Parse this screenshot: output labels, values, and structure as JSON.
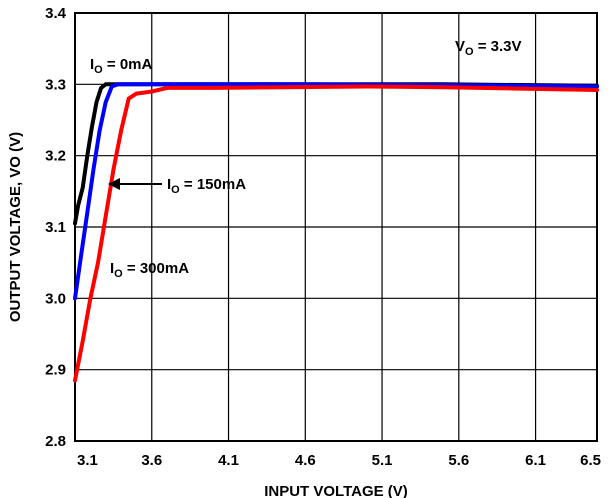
{
  "chart_data": {
    "type": "line",
    "title": "",
    "xlabel": "INPUT VOLTAGE (V)",
    "ylabel": "OUTPUT VOLTAGE, VO (V)",
    "xlim": [
      3.1,
      6.5
    ],
    "ylim": [
      2.8,
      3.4
    ],
    "x_ticks": [
      "3.1",
      "3.6",
      "4.1",
      "4.6",
      "5.1",
      "5.6",
      "6.1",
      "6.5"
    ],
    "y_ticks": [
      "2.8",
      "2.9",
      "3.0",
      "3.1",
      "3.2",
      "3.3",
      "3.4"
    ],
    "grid": true,
    "series": [
      {
        "name": "IO = 0mA",
        "color": "#000000",
        "points": [
          [
            3.1,
            3.105
          ],
          [
            3.12,
            3.13
          ],
          [
            3.15,
            3.155
          ],
          [
            3.18,
            3.2
          ],
          [
            3.21,
            3.24
          ],
          [
            3.24,
            3.275
          ],
          [
            3.27,
            3.295
          ],
          [
            3.3,
            3.3
          ],
          [
            3.5,
            3.3
          ],
          [
            4.5,
            3.3
          ],
          [
            5.5,
            3.3
          ],
          [
            6.5,
            3.298
          ]
        ]
      },
      {
        "name": "IO = 150mA",
        "color": "#0000ff",
        "points": [
          [
            3.1,
            3.0
          ],
          [
            3.14,
            3.06
          ],
          [
            3.18,
            3.12
          ],
          [
            3.22,
            3.18
          ],
          [
            3.26,
            3.235
          ],
          [
            3.3,
            3.275
          ],
          [
            3.34,
            3.297
          ],
          [
            3.38,
            3.3
          ],
          [
            3.6,
            3.3
          ],
          [
            4.5,
            3.3
          ],
          [
            5.5,
            3.299
          ],
          [
            6.5,
            3.297
          ]
        ]
      },
      {
        "name": "IO = 300mA",
        "color": "#ff0000",
        "points": [
          [
            3.1,
            2.885
          ],
          [
            3.15,
            2.94
          ],
          [
            3.2,
            3.0
          ],
          [
            3.25,
            3.05
          ],
          [
            3.3,
            3.115
          ],
          [
            3.35,
            3.18
          ],
          [
            3.4,
            3.235
          ],
          [
            3.45,
            3.28
          ],
          [
            3.5,
            3.287
          ],
          [
            3.6,
            3.29
          ],
          [
            3.7,
            3.295
          ],
          [
            4.0,
            3.295
          ],
          [
            5.0,
            3.297
          ],
          [
            5.5,
            3.296
          ],
          [
            6.0,
            3.294
          ],
          [
            6.5,
            3.292
          ]
        ]
      }
    ],
    "annotations": [
      {
        "main": "V",
        "sub": "O",
        "rest": " = 3.3V"
      },
      {
        "main": "I",
        "sub": "O",
        "rest": " = 0mA"
      },
      {
        "main": "I",
        "sub": "O",
        "rest": " = 150mA"
      },
      {
        "main": "I",
        "sub": "O",
        "rest": " = 300mA"
      }
    ]
  }
}
